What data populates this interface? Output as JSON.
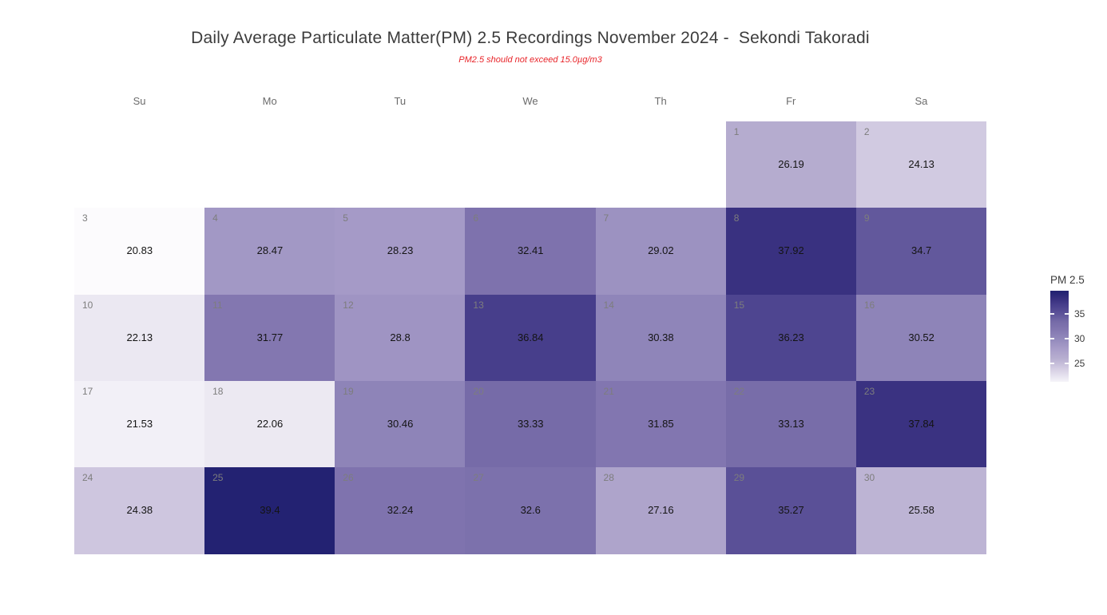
{
  "title": "Daily Average Particulate Matter(PM) 2.5 Recordings November 2024 -  Sekondi Takoradi",
  "subtitle": "PM2.5 should not exceed 15.0µg/m3",
  "subtitle_color": "#e8252a",
  "weekday_headers": [
    "Su",
    "Mo",
    "Tu",
    "We",
    "Th",
    "Fr",
    "Sa"
  ],
  "legend": {
    "title": "PM 2.5",
    "ticks": [
      35,
      30,
      25
    ],
    "domain_min": 21.3,
    "domain_max": 39.68
  },
  "chart_data": {
    "type": "heatmap",
    "subtype": "calendar-month",
    "month": "November 2024",
    "location": "Sekondi Takoradi",
    "unit": "µg/m3",
    "threshold_note": "PM2.5 should not exceed 15.0µg/m3",
    "value_range": [
      20.83,
      39.4
    ],
    "colormap_stops": [
      [
        20.8,
        "#fcfbfd"
      ],
      [
        22.1,
        "#ebe8f2"
      ],
      [
        24.0,
        "#d3cce2"
      ],
      [
        26.0,
        "#b7aed0"
      ],
      [
        28.0,
        "#a79cc8"
      ],
      [
        30.0,
        "#9289bb"
      ],
      [
        32.0,
        "#8175af"
      ],
      [
        33.5,
        "#756aa7"
      ],
      [
        35.0,
        "#5d5399"
      ],
      [
        37.0,
        "#453c8a"
      ],
      [
        38.0,
        "#38307f"
      ],
      [
        39.4,
        "#232272"
      ]
    ],
    "days": [
      {
        "day": 1,
        "row": 0,
        "col": 5,
        "value": 26.19
      },
      {
        "day": 2,
        "row": 0,
        "col": 6,
        "value": 24.13
      },
      {
        "day": 3,
        "row": 1,
        "col": 0,
        "value": 20.83
      },
      {
        "day": 4,
        "row": 1,
        "col": 1,
        "value": 28.47
      },
      {
        "day": 5,
        "row": 1,
        "col": 2,
        "value": 28.23
      },
      {
        "day": 6,
        "row": 1,
        "col": 3,
        "value": 32.41
      },
      {
        "day": 7,
        "row": 1,
        "col": 4,
        "value": 29.02
      },
      {
        "day": 8,
        "row": 1,
        "col": 5,
        "value": 37.92
      },
      {
        "day": 9,
        "row": 1,
        "col": 6,
        "value": 34.7
      },
      {
        "day": 10,
        "row": 2,
        "col": 0,
        "value": 22.13
      },
      {
        "day": 11,
        "row": 2,
        "col": 1,
        "value": 31.77
      },
      {
        "day": 12,
        "row": 2,
        "col": 2,
        "value": 28.8
      },
      {
        "day": 13,
        "row": 2,
        "col": 3,
        "value": 36.84
      },
      {
        "day": 14,
        "row": 2,
        "col": 4,
        "value": 30.38
      },
      {
        "day": 15,
        "row": 2,
        "col": 5,
        "value": 36.23
      },
      {
        "day": 16,
        "row": 2,
        "col": 6,
        "value": 30.52
      },
      {
        "day": 17,
        "row": 3,
        "col": 0,
        "value": 21.53
      },
      {
        "day": 18,
        "row": 3,
        "col": 1,
        "value": 22.06
      },
      {
        "day": 19,
        "row": 3,
        "col": 2,
        "value": 30.46
      },
      {
        "day": 20,
        "row": 3,
        "col": 3,
        "value": 33.33
      },
      {
        "day": 21,
        "row": 3,
        "col": 4,
        "value": 31.85
      },
      {
        "day": 22,
        "row": 3,
        "col": 5,
        "value": 33.13
      },
      {
        "day": 23,
        "row": 3,
        "col": 6,
        "value": 37.84
      },
      {
        "day": 24,
        "row": 4,
        "col": 0,
        "value": 24.38
      },
      {
        "day": 25,
        "row": 4,
        "col": 1,
        "value": 39.4
      },
      {
        "day": 26,
        "row": 4,
        "col": 2,
        "value": 32.24
      },
      {
        "day": 27,
        "row": 4,
        "col": 3,
        "value": 32.6
      },
      {
        "day": 28,
        "row": 4,
        "col": 4,
        "value": 27.16
      },
      {
        "day": 29,
        "row": 4,
        "col": 5,
        "value": 35.27
      },
      {
        "day": 30,
        "row": 4,
        "col": 6,
        "value": 25.58
      }
    ]
  }
}
